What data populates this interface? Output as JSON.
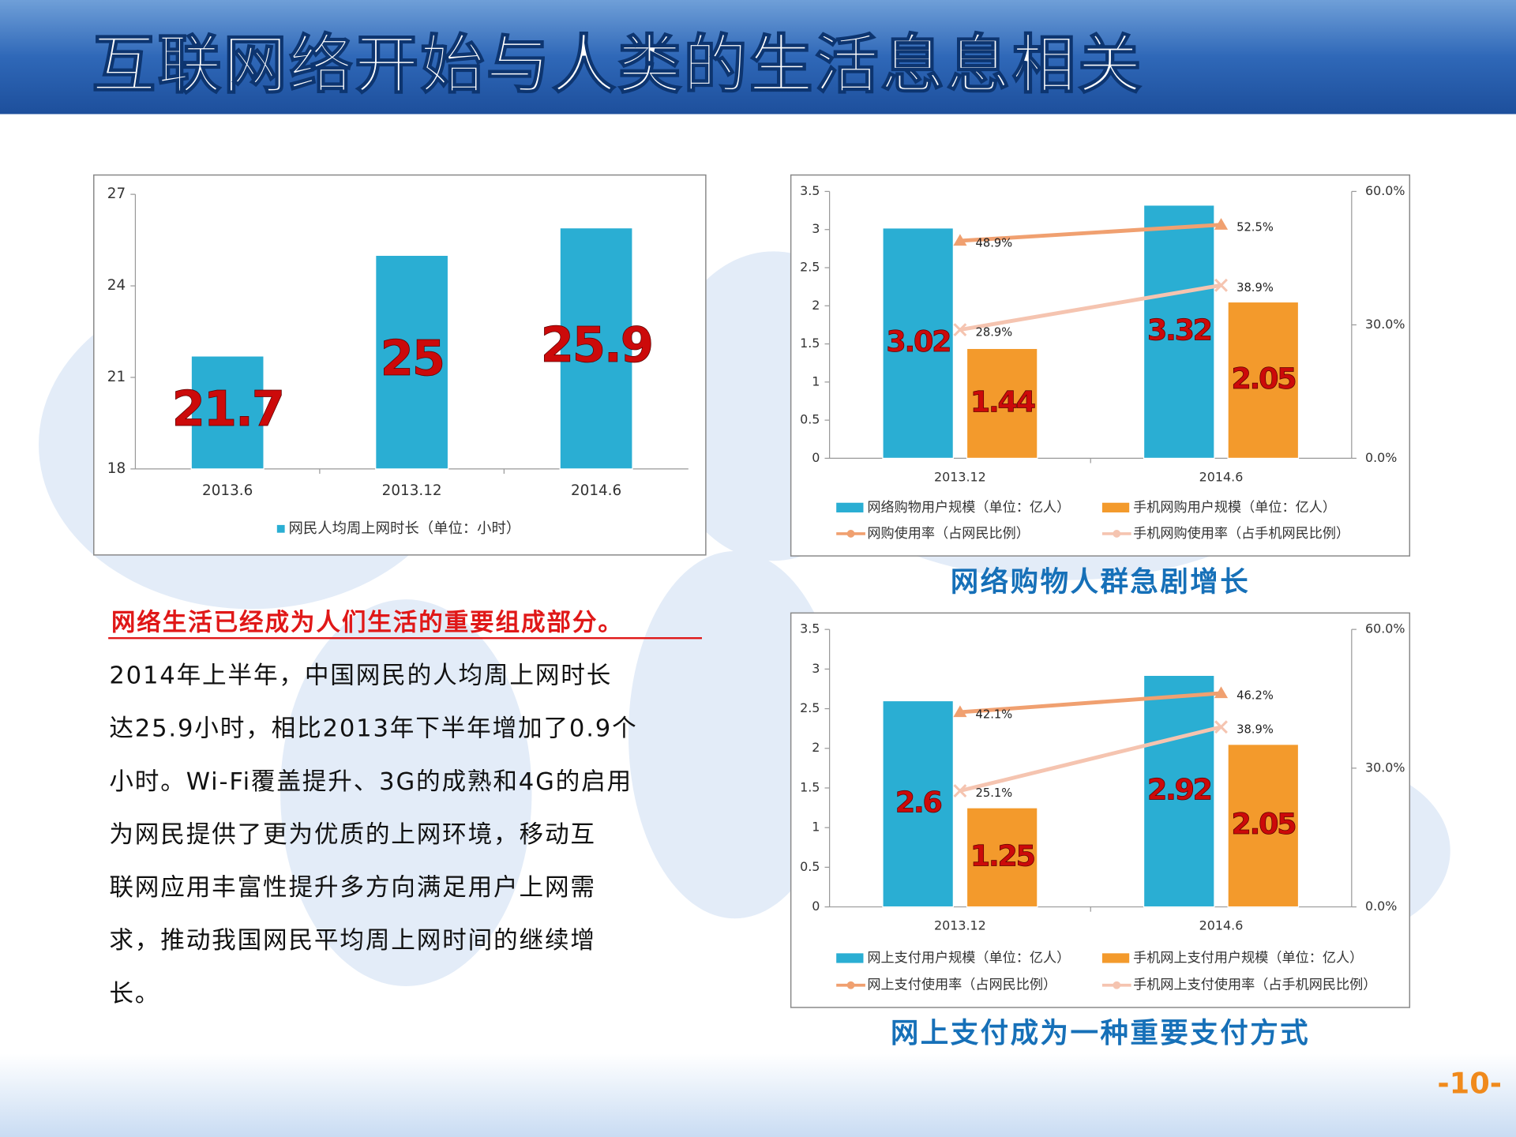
{
  "title": "互联网络开始与人类的生活息息相关",
  "chart_data": [
    {
      "type": "bar",
      "categories": [
        "2013.6",
        "2013.12",
        "2014.6"
      ],
      "series": [
        {
          "name": "网民人均周上网时长（单位：小时）",
          "color": "#2aaed3",
          "values": [
            21.7,
            25,
            25.9
          ]
        }
      ],
      "ylim": [
        18,
        27
      ],
      "yticks": [
        18,
        21,
        24,
        27
      ]
    },
    {
      "type": "bar",
      "categories": [
        "2013.12",
        "2014.6"
      ],
      "series": [
        {
          "name": "网络购物用户规模（单位：亿人）",
          "color": "#2aaed3",
          "values": [
            3.02,
            3.32
          ]
        },
        {
          "name": "手机网购用户规模（单位：亿人）",
          "color": "#f39a2c",
          "values": [
            1.44,
            2.05
          ]
        },
        {
          "name": "网购使用率（占网民比例）",
          "type": "line",
          "axis": "y2",
          "marker": "triangle",
          "color": "#f0a070",
          "values": [
            48.9,
            52.5
          ],
          "value_labels": [
            "48.9%",
            "52.5%"
          ]
        },
        {
          "name": "手机网购使用率（占手机网民比例）",
          "type": "line",
          "axis": "y2",
          "marker": "x",
          "color": "#f5c4b0",
          "values": [
            28.9,
            38.9
          ],
          "value_labels": [
            "28.9%",
            "38.9%"
          ]
        }
      ],
      "ylim": [
        0,
        3.5
      ],
      "yticks": [
        0,
        0.5,
        1,
        1.5,
        2,
        2.5,
        3,
        3.5
      ],
      "y2lim": [
        0,
        60
      ],
      "y2ticks": [
        {
          "value": 0,
          "label": "0.0%"
        },
        {
          "value": 30,
          "label": "30.0%"
        },
        {
          "value": 60,
          "label": "60.0%"
        }
      ],
      "caption": "网络购物人群急剧增长"
    },
    {
      "type": "bar",
      "categories": [
        "2013.12",
        "2014.6"
      ],
      "series": [
        {
          "name": "网上支付用户规模（单位：亿人）",
          "color": "#2aaed3",
          "values": [
            2.6,
            2.92
          ]
        },
        {
          "name": "手机网上支付用户规模（单位：亿人）",
          "color": "#f39a2c",
          "values": [
            1.25,
            2.05
          ]
        },
        {
          "name": "网上支付使用率（占网民比例）",
          "type": "line",
          "axis": "y2",
          "marker": "triangle",
          "color": "#f0a070",
          "values": [
            42.1,
            46.2
          ],
          "value_labels": [
            "42.1%",
            "46.2%"
          ]
        },
        {
          "name": "手机网上支付使用率（占手机网民比例）",
          "type": "line",
          "axis": "y2",
          "marker": "x",
          "color": "#f5c4b0",
          "values": [
            25.1,
            38.9
          ],
          "value_labels": [
            "25.1%",
            "38.9%"
          ]
        }
      ],
      "ylim": [
        0,
        3.5
      ],
      "yticks": [
        0,
        0.5,
        1,
        1.5,
        2,
        2.5,
        3,
        3.5
      ],
      "y2lim": [
        0,
        60
      ],
      "y2ticks": [
        {
          "value": 0,
          "label": "0.0%"
        },
        {
          "value": 30,
          "label": "30.0%"
        },
        {
          "value": 60,
          "label": "60.0%"
        }
      ],
      "caption": "网上支付成为一种重要支付方式"
    }
  ],
  "text": {
    "heading": "网络生活已经成为人们生活的重要组成部分。",
    "lines": [
      "2014年上半年，中国网民的人均周上网时长",
      "达25.9小时，相比2013年下半年增加了0.9个",
      "小时。Wi-Fi覆盖提升、3G的成熟和4G的启用",
      "为网民提供了更为优质的上网环境，移动互",
      "联网应用丰富性提升多方向满足用户上网需",
      "求，推动我国网民平均周上网时间的继续增",
      "长。"
    ]
  },
  "page_number": "-10-"
}
